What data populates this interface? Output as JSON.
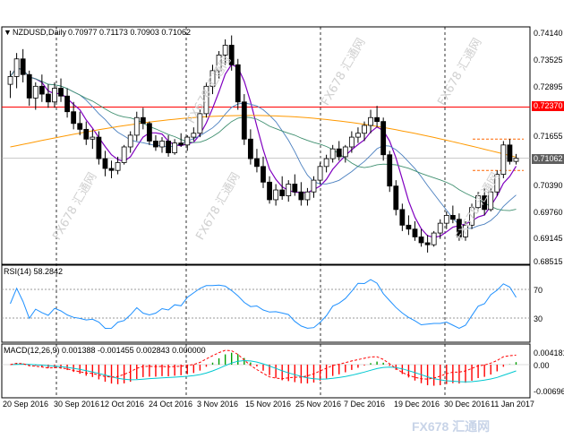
{
  "header": {
    "symbol": "NZDUSD,Daily",
    "ohlc": "0.70977 0.71173 0.70903 0.71062",
    "rsi_label": "RSI(14) 58.2842",
    "macd_label": "MACD(12,26,9) 0.001388 -0.001455 0.002843 0.000000"
  },
  "price_axis": [
    "0.74140",
    "0.73525",
    "0.72895",
    "0.71655",
    "0.70390",
    "0.69760",
    "0.69145",
    "0.68515"
  ],
  "price_tags": {
    "resistance": {
      "text": "0.72370",
      "color": "#ff0000"
    },
    "current": {
      "text": "0.71062",
      "color": "#606060"
    }
  },
  "rsi_axis": [
    "70",
    "30"
  ],
  "macd_axis": [
    "0.004181",
    "0.00",
    "-0.006964"
  ],
  "date_axis": [
    "20 Sep 2016",
    "30 Sep 2016",
    "12 Oct 2016",
    "24 Oct 2016",
    "3 Nov 2016",
    "15 Nov 2016",
    "25 Nov 2016",
    "7 Dec 2016",
    "19 Dec 2016",
    "30 Dec 2016",
    "11 Jan 2017"
  ],
  "watermark": {
    "text": "FX678 汇通网",
    "footer": "FX678 汇通网"
  },
  "colors": {
    "resistance": "#ff0000",
    "ma_fast": "#8000c0",
    "ma_mid": "#4a7fbf",
    "ma_green": "#3f8f6f",
    "ma_slow": "#ff9900",
    "rsi_line": "#1e90ff",
    "macd_signal": "#00c8d0",
    "macd_osma": "#ff0000",
    "hist_up": "#00a000",
    "hist_down": "#ff0000"
  },
  "chart_data": {
    "type": "candlestick",
    "price_range": [
      0.6835,
      0.7435
    ],
    "candles": [
      [
        0.7295,
        0.733,
        0.726,
        0.7315
      ],
      [
        0.7315,
        0.7375,
        0.7285,
        0.736
      ],
      [
        0.736,
        0.7385,
        0.73,
        0.732
      ],
      [
        0.732,
        0.733,
        0.724,
        0.726
      ],
      [
        0.726,
        0.73,
        0.723,
        0.729
      ],
      [
        0.729,
        0.732,
        0.725,
        0.727
      ],
      [
        0.727,
        0.7295,
        0.7235,
        0.725
      ],
      [
        0.725,
        0.73,
        0.7235,
        0.7285
      ],
      [
        0.7285,
        0.731,
        0.725,
        0.7265
      ],
      [
        0.7265,
        0.7285,
        0.721,
        0.7225
      ],
      [
        0.7225,
        0.725,
        0.718,
        0.7195
      ],
      [
        0.7195,
        0.7225,
        0.7165,
        0.718
      ],
      [
        0.718,
        0.72,
        0.714,
        0.7155
      ],
      [
        0.7155,
        0.718,
        0.713,
        0.716
      ],
      [
        0.716,
        0.7175,
        0.709,
        0.7105
      ],
      [
        0.7105,
        0.7125,
        0.706,
        0.708
      ],
      [
        0.708,
        0.71,
        0.7055,
        0.7075
      ],
      [
        0.7075,
        0.711,
        0.7065,
        0.7095
      ],
      [
        0.7095,
        0.714,
        0.709,
        0.7135
      ],
      [
        0.7135,
        0.7175,
        0.712,
        0.7165
      ],
      [
        0.7165,
        0.7225,
        0.715,
        0.721
      ],
      [
        0.721,
        0.7235,
        0.718,
        0.7195
      ],
      [
        0.7195,
        0.72,
        0.714,
        0.715
      ],
      [
        0.715,
        0.7165,
        0.7125,
        0.7135
      ],
      [
        0.7135,
        0.716,
        0.712,
        0.715
      ],
      [
        0.715,
        0.7165,
        0.711,
        0.712
      ],
      [
        0.712,
        0.7155,
        0.7115,
        0.7145
      ],
      [
        0.7145,
        0.717,
        0.7135,
        0.714
      ],
      [
        0.714,
        0.7165,
        0.7125,
        0.716
      ],
      [
        0.716,
        0.7185,
        0.715,
        0.717
      ],
      [
        0.717,
        0.723,
        0.716,
        0.722
      ],
      [
        0.722,
        0.73,
        0.721,
        0.729
      ],
      [
        0.729,
        0.7345,
        0.727,
        0.733
      ],
      [
        0.733,
        0.738,
        0.731,
        0.737
      ],
      [
        0.737,
        0.741,
        0.7345,
        0.7395
      ],
      [
        0.7395,
        0.742,
        0.733,
        0.7345
      ],
      [
        0.7345,
        0.736,
        0.723,
        0.725
      ],
      [
        0.725,
        0.727,
        0.714,
        0.7155
      ],
      [
        0.7155,
        0.718,
        0.709,
        0.7105
      ],
      [
        0.7105,
        0.713,
        0.707,
        0.7085
      ],
      [
        0.7085,
        0.711,
        0.703,
        0.7045
      ],
      [
        0.7045,
        0.706,
        0.699,
        0.7
      ],
      [
        0.7,
        0.704,
        0.6985,
        0.7025
      ],
      [
        0.7025,
        0.706,
        0.7,
        0.701
      ],
      [
        0.701,
        0.705,
        0.6995,
        0.704
      ],
      [
        0.704,
        0.7065,
        0.701,
        0.702
      ],
      [
        0.702,
        0.7045,
        0.6985,
        0.7
      ],
      [
        0.7,
        0.703,
        0.6985,
        0.702
      ],
      [
        0.702,
        0.706,
        0.7005,
        0.705
      ],
      [
        0.705,
        0.7095,
        0.704,
        0.7085
      ],
      [
        0.7085,
        0.7115,
        0.707,
        0.7105
      ],
      [
        0.7105,
        0.714,
        0.7095,
        0.713
      ],
      [
        0.713,
        0.715,
        0.71,
        0.711
      ],
      [
        0.711,
        0.714,
        0.7095,
        0.7135
      ],
      [
        0.7135,
        0.7175,
        0.712,
        0.716
      ],
      [
        0.716,
        0.7185,
        0.7145,
        0.717
      ],
      [
        0.717,
        0.72,
        0.715,
        0.719
      ],
      [
        0.719,
        0.723,
        0.717,
        0.721
      ],
      [
        0.721,
        0.724,
        0.7185,
        0.72
      ],
      [
        0.72,
        0.721,
        0.71,
        0.7115
      ],
      [
        0.7115,
        0.7125,
        0.702,
        0.7035
      ],
      [
        0.7035,
        0.705,
        0.696,
        0.6975
      ],
      [
        0.6975,
        0.699,
        0.692,
        0.6935
      ],
      [
        0.6935,
        0.696,
        0.691,
        0.6925
      ],
      [
        0.6925,
        0.6945,
        0.6895,
        0.6905
      ],
      [
        0.6905,
        0.6925,
        0.688,
        0.689
      ],
      [
        0.689,
        0.691,
        0.6865,
        0.6885
      ],
      [
        0.6885,
        0.692,
        0.688,
        0.6915
      ],
      [
        0.6915,
        0.695,
        0.69,
        0.694
      ],
      [
        0.694,
        0.697,
        0.6925,
        0.696
      ],
      [
        0.696,
        0.6985,
        0.694,
        0.695
      ],
      [
        0.695,
        0.6965,
        0.6895,
        0.6905
      ],
      [
        0.6905,
        0.6945,
        0.6895,
        0.6935
      ],
      [
        0.6935,
        0.699,
        0.6925,
        0.698
      ],
      [
        0.698,
        0.702,
        0.697,
        0.701
      ],
      [
        0.701,
        0.703,
        0.696,
        0.6975
      ],
      [
        0.6975,
        0.703,
        0.697,
        0.702
      ],
      [
        0.702,
        0.7075,
        0.701,
        0.7065
      ],
      [
        0.7065,
        0.715,
        0.7055,
        0.714
      ],
      [
        0.714,
        0.7155,
        0.709,
        0.7098
      ],
      [
        0.7098,
        0.7117,
        0.709,
        0.7106
      ]
    ],
    "resistance": 0.7237,
    "current": 0.71062,
    "rsi_last": 58.2842
  }
}
